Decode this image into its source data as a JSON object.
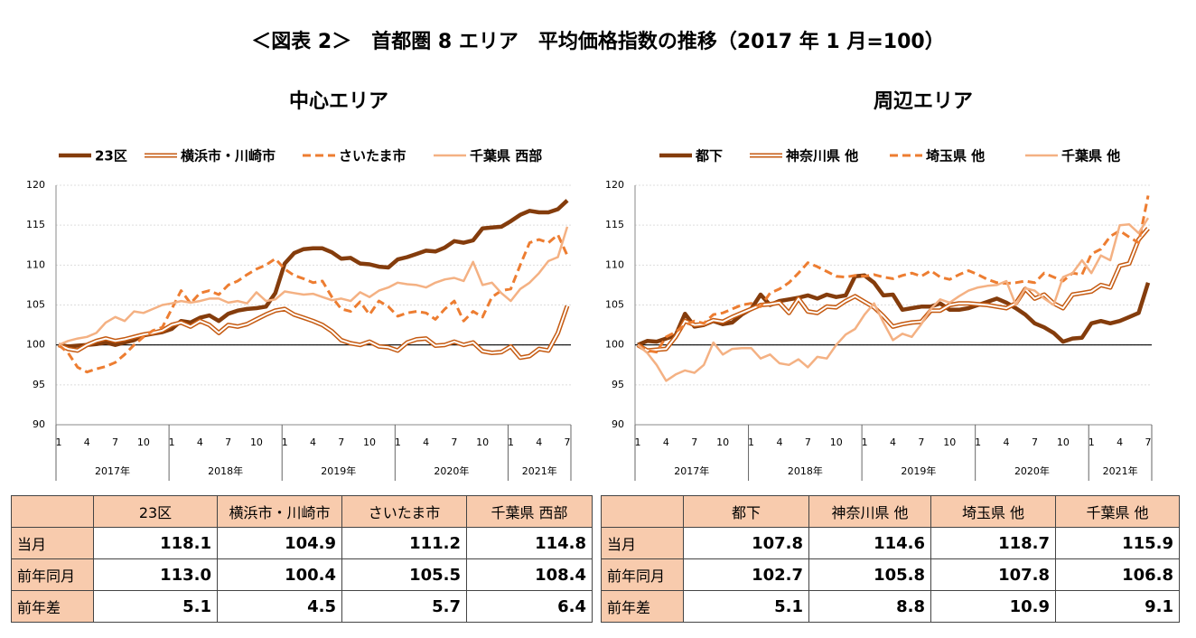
{
  "title": "＜図表 2＞　首都圏 8 エリア　平均価格指数の推移（2017 年 1 月=100）",
  "chart_data": [
    {
      "type": "line",
      "title": "中心エリア",
      "categories": [
        "1",
        null,
        null,
        "4",
        null,
        null,
        "7",
        null,
        null,
        "10",
        null,
        null,
        "1",
        null,
        null,
        "4",
        null,
        null,
        "7",
        null,
        null,
        "10",
        null,
        null,
        "1",
        null,
        null,
        "4",
        null,
        null,
        "7",
        null,
        null,
        "10",
        null,
        null,
        "1",
        null,
        null,
        "4",
        null,
        null,
        "7",
        null,
        null,
        "10",
        null,
        null,
        "1",
        null,
        null,
        "4",
        null,
        null,
        "7"
      ],
      "year_labels": [
        "2017年",
        "2018年",
        "2019年",
        "2020年",
        "2021年"
      ],
      "ylim": [
        90,
        120
      ],
      "yticks": [
        90,
        95,
        100,
        105,
        110,
        115,
        120
      ],
      "reference_line": 100,
      "series": [
        {
          "name": "23区",
          "color": "#843C0C",
          "style": "thick",
          "values": [
            100,
            99.8,
            99.9,
            100.0,
            100.1,
            100.3,
            100.0,
            100.3,
            100.6,
            101.2,
            101.4,
            101.6,
            102.0,
            103.0,
            102.8,
            103.4,
            103.7,
            103.0,
            103.9,
            104.3,
            104.5,
            104.6,
            104.8,
            106.5,
            110.2,
            111.5,
            112.0,
            112.1,
            112.1,
            111.6,
            110.8,
            110.9,
            110.2,
            110.1,
            109.8,
            109.7,
            110.7,
            111.0,
            111.4,
            111.8,
            111.7,
            112.2,
            113.0,
            112.8,
            113.1,
            114.6,
            114.7,
            114.8,
            115.5,
            116.3,
            116.8,
            116.6,
            116.6,
            117.0,
            118.1
          ]
        },
        {
          "name": "横浜市・川崎市",
          "color": "#C55A11",
          "style": "double",
          "values": [
            100,
            99.5,
            99.3,
            100.0,
            100.5,
            100.8,
            100.5,
            100.7,
            101.0,
            101.3,
            101.5,
            101.8,
            102.5,
            102.8,
            102.3,
            103.0,
            102.5,
            101.5,
            102.5,
            102.3,
            102.6,
            103.2,
            103.8,
            104.3,
            104.5,
            103.8,
            103.4,
            103.0,
            102.5,
            101.7,
            100.6,
            100.2,
            100.0,
            100.4,
            99.8,
            99.7,
            99.3,
            100.3,
            100.7,
            100.8,
            99.9,
            100.0,
            100.4,
            100.0,
            100.3,
            99.2,
            99.0,
            99.1,
            99.8,
            98.4,
            98.6,
            99.5,
            99.3,
            101.5,
            104.9
          ]
        },
        {
          "name": "さいたま市",
          "color": "#ED7D31",
          "style": "dashed",
          "values": [
            100,
            99.0,
            97.2,
            96.6,
            97.0,
            97.3,
            97.8,
            98.8,
            100.0,
            101.0,
            101.8,
            102.2,
            104.5,
            106.8,
            105.2,
            106.5,
            106.8,
            106.3,
            107.5,
            108.0,
            108.8,
            109.5,
            110.0,
            110.8,
            109.5,
            108.7,
            108.3,
            107.8,
            108.0,
            106.0,
            104.5,
            104.2,
            105.4,
            103.8,
            105.5,
            104.8,
            103.6,
            104.0,
            104.2,
            104.0,
            103.2,
            104.5,
            105.5,
            103.0,
            104.2,
            103.5,
            106.0,
            106.8,
            107.0,
            110.0,
            112.8,
            113.2,
            112.8,
            113.8,
            111.2
          ]
        },
        {
          "name": "千葉県 西部",
          "color": "#F4B183",
          "style": "light",
          "values": [
            100,
            100.5,
            100.8,
            101.0,
            101.5,
            102.8,
            103.5,
            103.0,
            104.2,
            104.0,
            104.5,
            105.0,
            105.2,
            105.5,
            105.3,
            105.5,
            105.8,
            105.8,
            105.3,
            105.5,
            105.2,
            106.6,
            105.5,
            105.7,
            106.7,
            106.5,
            106.3,
            106.4,
            106.0,
            105.6,
            105.8,
            105.5,
            106.6,
            106.0,
            106.8,
            107.2,
            107.8,
            107.6,
            107.5,
            107.2,
            107.8,
            108.2,
            108.4,
            108.0,
            110.4,
            107.5,
            107.8,
            106.5,
            105.5,
            107.0,
            107.8,
            109.0,
            110.5,
            111.0,
            114.8
          ]
        }
      ]
    },
    {
      "type": "line",
      "title": "周辺エリア",
      "categories": [
        "1",
        null,
        null,
        "4",
        null,
        null,
        "7",
        null,
        null,
        "10",
        null,
        null,
        "1",
        null,
        null,
        "4",
        null,
        null,
        "7",
        null,
        null,
        "10",
        null,
        null,
        "1",
        null,
        null,
        "4",
        null,
        null,
        "7",
        null,
        null,
        "10",
        null,
        null,
        "1",
        null,
        null,
        "4",
        null,
        null,
        "7",
        null,
        null,
        "10",
        null,
        null,
        "1",
        null,
        null,
        "4",
        null,
        null,
        "7"
      ],
      "year_labels": [
        "2017年",
        "2018年",
        "2019年",
        "2020年",
        "2021年"
      ],
      "ylim": [
        90,
        120
      ],
      "yticks": [
        90,
        95,
        100,
        105,
        110,
        115,
        120
      ],
      "reference_line": 100,
      "series": [
        {
          "name": "都下",
          "color": "#843C0C",
          "style": "thick",
          "values": [
            100,
            100.5,
            100.4,
            100.8,
            101.2,
            103.9,
            102.3,
            102.5,
            103.0,
            102.6,
            102.8,
            103.8,
            104.5,
            106.3,
            105.0,
            105.5,
            105.7,
            105.9,
            106.2,
            105.8,
            106.3,
            106.0,
            106.2,
            108.6,
            108.7,
            107.8,
            106.2,
            106.3,
            104.4,
            104.6,
            104.8,
            104.8,
            105.2,
            104.4,
            104.4,
            104.6,
            105.0,
            105.4,
            105.8,
            105.3,
            104.6,
            103.8,
            102.7,
            102.2,
            101.5,
            100.4,
            100.8,
            100.9,
            102.7,
            103.0,
            102.7,
            103.0,
            103.5,
            104.0,
            107.8
          ]
        },
        {
          "name": "神奈川県 他",
          "color": "#C55A11",
          "style": "double",
          "values": [
            100,
            99.3,
            99.4,
            99.5,
            101.0,
            103.0,
            102.5,
            102.6,
            103.1,
            102.9,
            103.5,
            104.0,
            104.5,
            105.0,
            105.1,
            105.3,
            104.0,
            105.8,
            104.2,
            104.0,
            104.8,
            104.7,
            105.5,
            106.1,
            105.4,
            104.7,
            103.6,
            102.3,
            102.6,
            102.8,
            102.9,
            104.3,
            104.3,
            105.0,
            105.2,
            105.2,
            105.1,
            105.0,
            104.8,
            104.6,
            105.2,
            107.0,
            105.8,
            106.3,
            105.2,
            104.6,
            106.3,
            106.5,
            106.7,
            107.5,
            107.2,
            109.9,
            110.2,
            113.2,
            114.6
          ]
        },
        {
          "name": "埼玉県 他",
          "color": "#ED7D31",
          "style": "dashed",
          "values": [
            100,
            99.3,
            99.1,
            101.0,
            101.6,
            102.5,
            103.0,
            102.7,
            103.8,
            104.0,
            104.5,
            105.0,
            105.2,
            104.8,
            106.5,
            107.0,
            107.8,
            109.0,
            110.3,
            109.8,
            109.2,
            108.6,
            108.5,
            108.7,
            108.6,
            108.8,
            108.5,
            108.3,
            108.7,
            109.0,
            108.6,
            109.3,
            108.5,
            108.2,
            108.8,
            109.3,
            108.8,
            108.2,
            107.8,
            107.7,
            107.8,
            108.0,
            107.8,
            109.0,
            108.5,
            108.0,
            109.0,
            108.8,
            111.4,
            112.0,
            113.6,
            114.3,
            113.5,
            112.8,
            118.7
          ]
        },
        {
          "name": "千葉県 他",
          "color": "#F4B183",
          "style": "light",
          "values": [
            100,
            99.0,
            97.5,
            95.5,
            96.3,
            96.8,
            96.5,
            97.5,
            100.3,
            98.8,
            99.5,
            99.6,
            99.6,
            98.3,
            98.8,
            97.7,
            97.5,
            98.2,
            97.2,
            98.5,
            98.3,
            100.0,
            101.3,
            102.0,
            103.8,
            105.2,
            102.8,
            100.6,
            101.4,
            101.0,
            102.6,
            104.5,
            105.7,
            105.3,
            106.1,
            106.8,
            107.2,
            107.4,
            107.5,
            108.0,
            105.0,
            107.1,
            106.8,
            105.8,
            105.0,
            108.5,
            109.0,
            110.6,
            109.0,
            111.2,
            110.6,
            115.0,
            115.1,
            114.0,
            115.9
          ]
        }
      ]
    }
  ],
  "tables": [
    {
      "columns": [
        "23区",
        "横浜市・川崎市",
        "さいたま市",
        "千葉県 西部"
      ],
      "rows": [
        {
          "label": "当月",
          "values": [
            "118.1",
            "104.9",
            "111.2",
            "114.8"
          ]
        },
        {
          "label": "前年同月",
          "values": [
            "113.0",
            "100.4",
            "105.5",
            "108.4"
          ]
        },
        {
          "label": "前年差",
          "values": [
            "5.1",
            "4.5",
            "5.7",
            "6.4"
          ]
        }
      ]
    },
    {
      "columns": [
        "都下",
        "神奈川県 他",
        "埼玉県 他",
        "千葉県 他"
      ],
      "rows": [
        {
          "label": "当月",
          "values": [
            "107.8",
            "114.6",
            "118.7",
            "115.9"
          ]
        },
        {
          "label": "前年同月",
          "values": [
            "102.7",
            "105.8",
            "107.8",
            "106.8"
          ]
        },
        {
          "label": "前年差",
          "values": [
            "5.1",
            "8.8",
            "10.9",
            "9.1"
          ]
        }
      ]
    }
  ]
}
